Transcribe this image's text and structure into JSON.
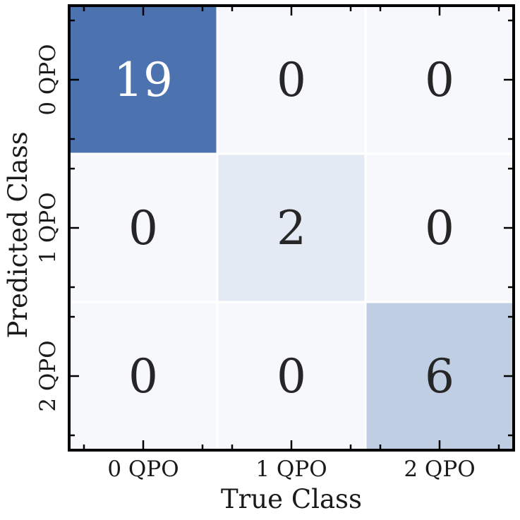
{
  "chart_data": {
    "type": "heatmap",
    "title": "",
    "xlabel": "True Class",
    "ylabel": "Predicted Class",
    "x_categories": [
      "0 QPO",
      "1 QPO",
      "2 QPO"
    ],
    "y_categories": [
      "0 QPO",
      "1 QPO",
      "2 QPO"
    ],
    "values": [
      [
        19,
        0,
        0
      ],
      [
        0,
        2,
        0
      ],
      [
        0,
        0,
        6
      ]
    ],
    "colormap": {
      "low": "#f6f8fb",
      "high": "#4c72b0"
    },
    "text_colors": {
      "dark": "#262626",
      "light": "#ffffff"
    },
    "grid": false,
    "legend": "none"
  }
}
